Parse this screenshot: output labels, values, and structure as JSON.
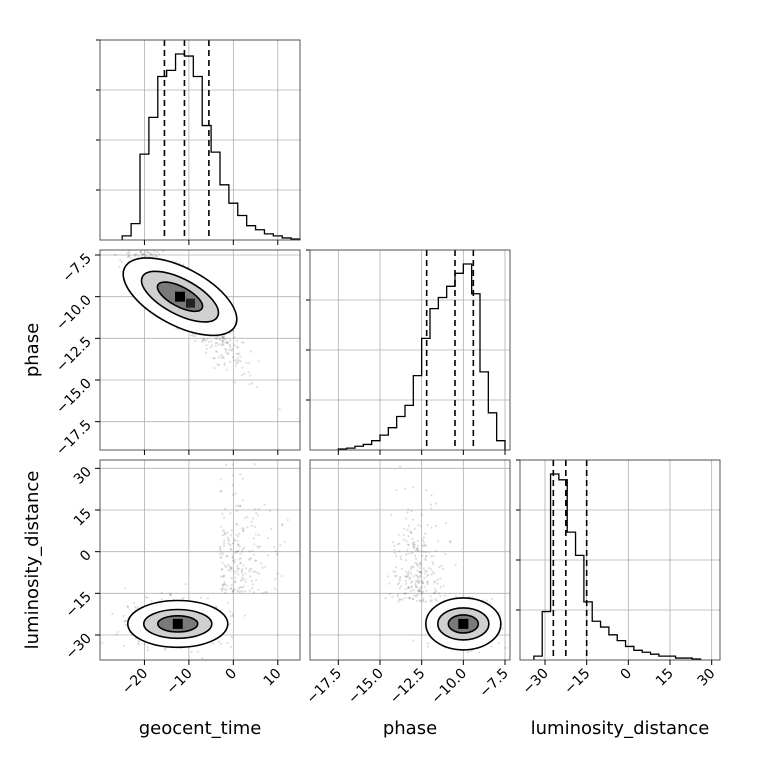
{
  "chart_data": {
    "type": "corner",
    "parameters": [
      "geocent_time",
      "phase",
      "luminosity_distance"
    ],
    "axis_labels": {
      "geocent_time": "geocent_time",
      "phase": "phase",
      "luminosity_distance": "luminosity_distance"
    },
    "ranges": {
      "geocent_time": [
        -30,
        15
      ],
      "phase": [
        -19.2,
        -7.2
      ],
      "luminosity_distance": [
        -39,
        33
      ]
    },
    "ticks": {
      "geocent_time": [
        -20,
        -10,
        0,
        10
      ],
      "phase": [
        -17.5,
        -15.0,
        -12.5,
        -10.0,
        -7.5
      ],
      "luminosity_distance": [
        -30,
        -15,
        0,
        15,
        30
      ]
    },
    "tick_labels": {
      "geocent_time": [
        "−20",
        "−10",
        "0",
        "10"
      ],
      "phase": [
        "−17.5",
        "−15.0",
        "−12.5",
        "−10.0",
        "−7.5"
      ],
      "luminosity_distance": [
        "−30",
        "−15",
        "0",
        "15",
        "30"
      ]
    },
    "grid": true,
    "histograms": {
      "geocent_time": {
        "edges": [
          -25,
          -23,
          -21,
          -19,
          -17,
          -15,
          -13,
          -11,
          -9,
          -7,
          -5,
          -3,
          -1,
          1,
          3,
          5,
          7,
          9,
          11,
          13,
          15
        ],
        "counts": [
          2,
          8,
          42,
          60,
          80,
          83,
          91,
          90,
          80,
          56,
          43,
          27,
          18,
          12,
          7,
          5,
          3,
          2,
          1,
          0.5
        ],
        "quantiles": [
          -15.5,
          -11,
          -5.5
        ]
      },
      "phase": {
        "edges": [
          -17.5,
          -17,
          -16.5,
          -16,
          -15.5,
          -15,
          -14.5,
          -14,
          -13.5,
          -13,
          -12.5,
          -12,
          -11.5,
          -11,
          -10.5,
          -10,
          -9.5,
          -9,
          -8.5,
          -8,
          -7.5
        ],
        "counts": [
          0.5,
          1,
          2,
          3,
          5,
          8,
          12,
          18,
          24,
          40,
          60,
          76,
          82,
          88,
          95,
          100,
          84,
          42,
          20,
          5
        ],
        "quantiles": [
          -12.2,
          -10.5,
          -9.4
        ]
      },
      "luminosity_distance": {
        "edges": [
          -34,
          -31,
          -28,
          -25,
          -22,
          -19,
          -16,
          -13,
          -10,
          -7,
          -4,
          -1,
          2,
          5,
          8,
          11,
          14,
          17,
          20,
          23,
          26
        ],
        "counts": [
          2,
          25,
          96,
          93,
          66,
          54,
          30,
          20,
          17,
          13,
          10,
          7,
          5,
          4,
          3,
          2,
          2,
          1,
          1,
          0.5
        ],
        "quantiles": [
          -27,
          -22.5,
          -15
        ]
      }
    },
    "density_modes": {
      "phase_vs_geocent_time": {
        "x": -12,
        "y": -10
      },
      "luminosity_distance_vs_geocent_time": {
        "x": -12.5,
        "y": -26
      },
      "luminosity_distance_vs_phase": {
        "x": -10,
        "y": -26
      }
    }
  }
}
